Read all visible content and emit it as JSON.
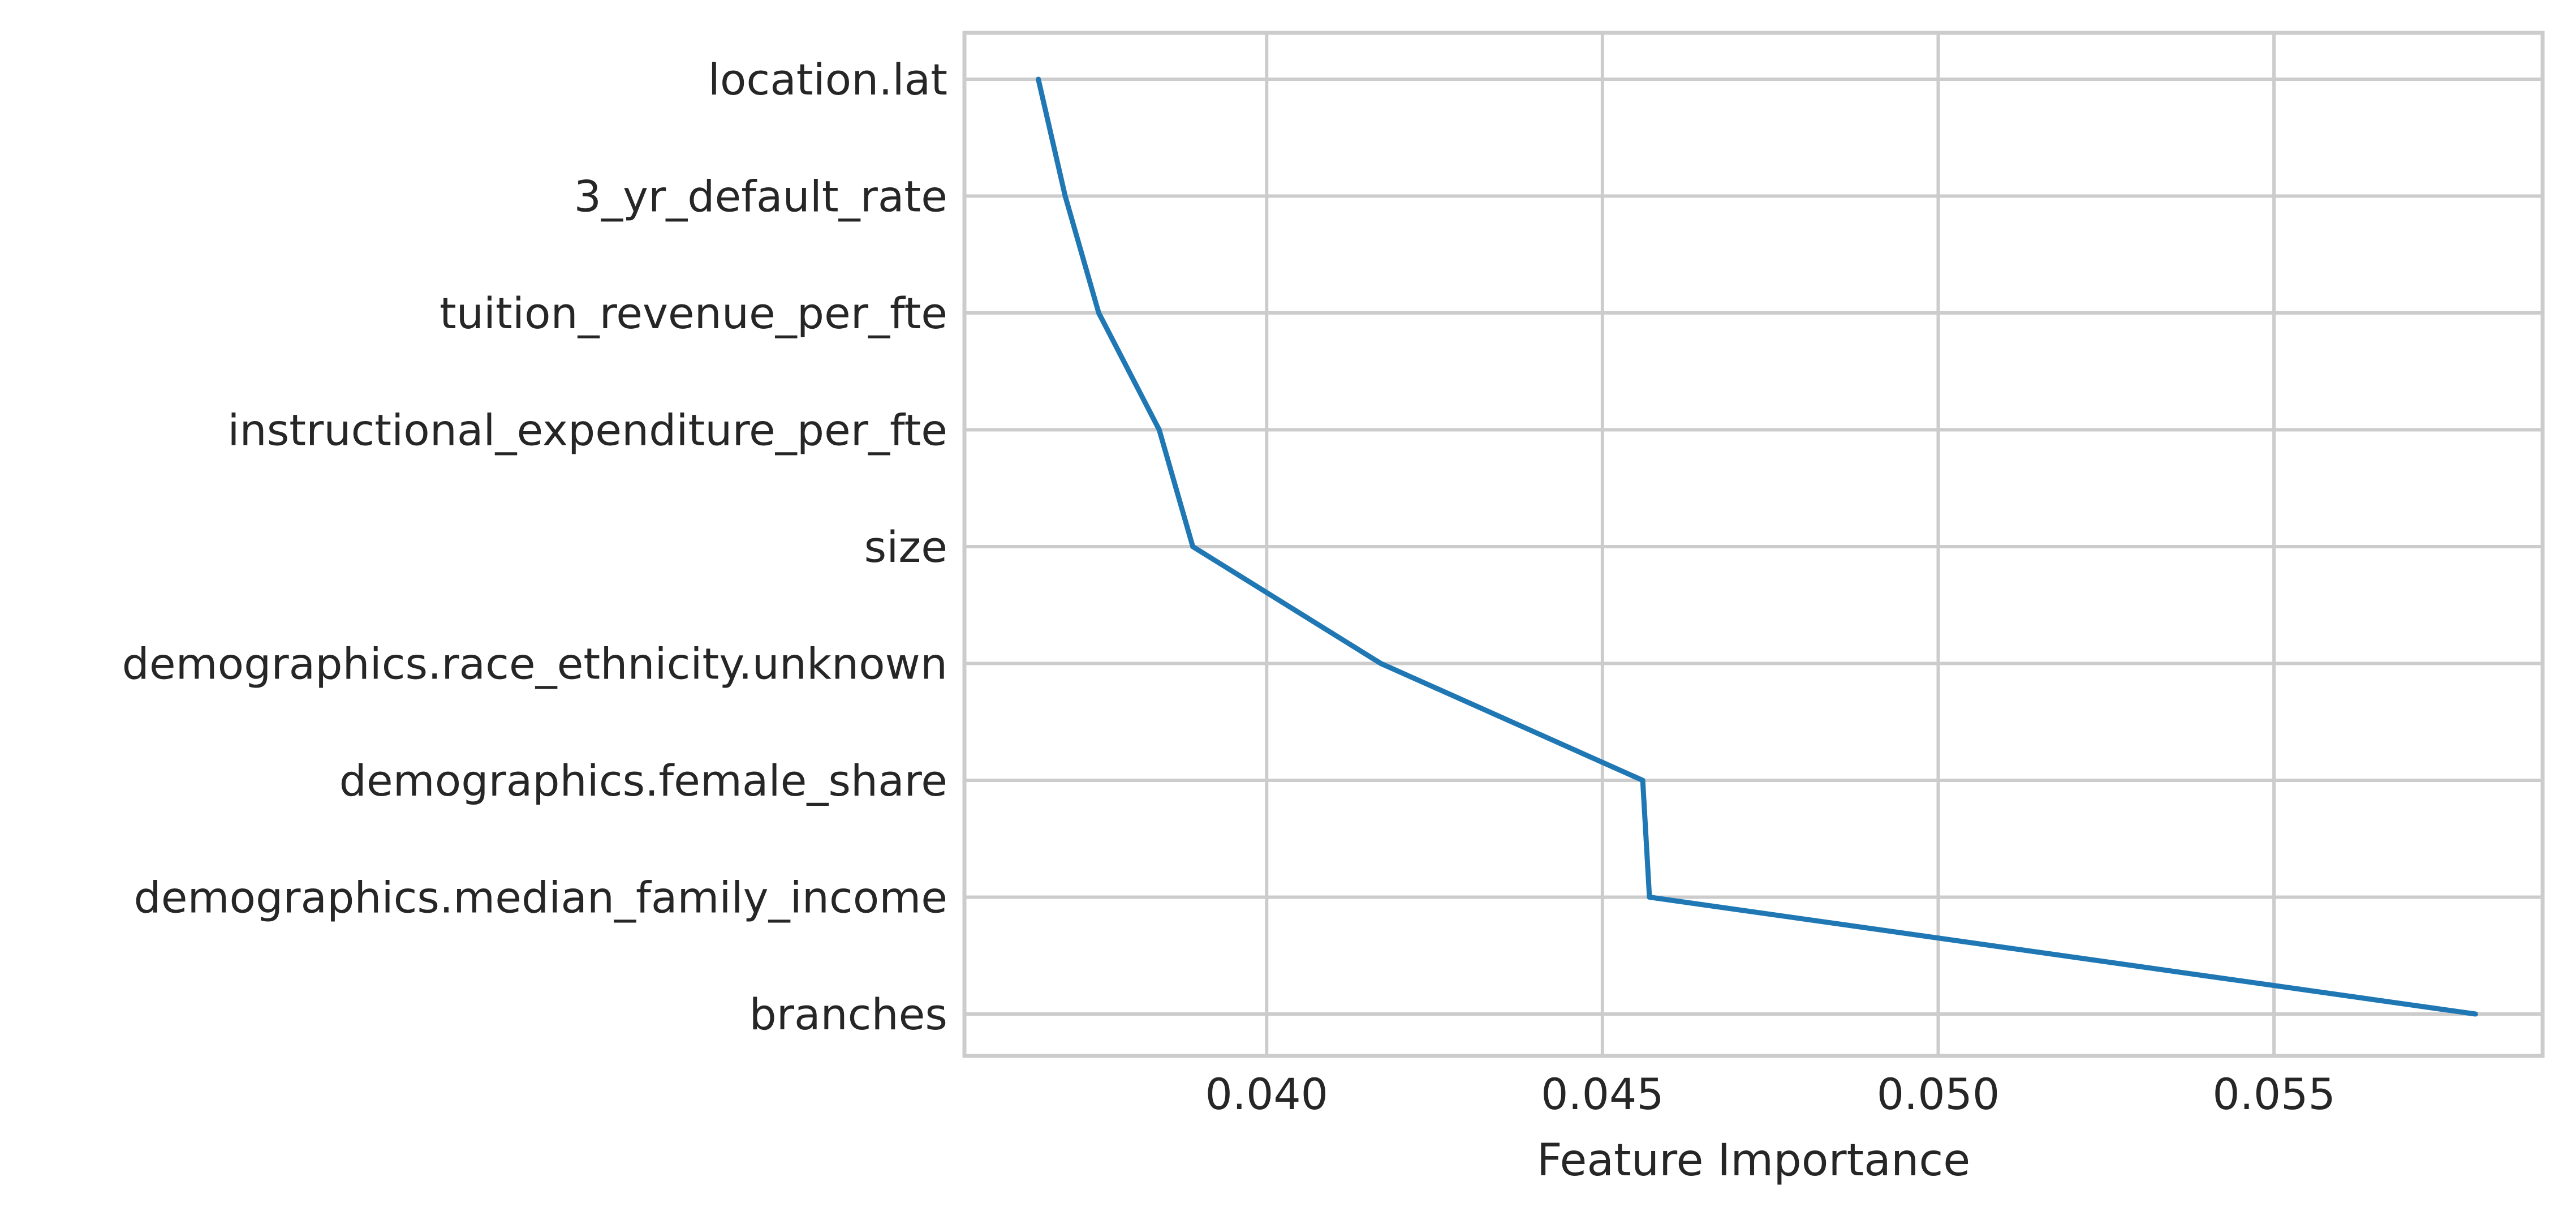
{
  "chart_data": {
    "type": "line",
    "title": "",
    "xlabel": "Feature Importance",
    "ylabel": "",
    "categories": [
      "location.lat",
      "3_yr_default_rate",
      "tuition_revenue_per_fte",
      "instructional_expenditure_per_fte",
      "size",
      "demographics.race_ethnicity.unknown",
      "demographics.female_share",
      "demographics.median_family_income",
      "branches"
    ],
    "x_ticks": [
      "0.040",
      "0.045",
      "0.050",
      "0.055"
    ],
    "x_tick_values": [
      0.04,
      0.045,
      0.05,
      0.055
    ],
    "xlim": [
      0.0355,
      0.059
    ],
    "grid": true,
    "series": [
      {
        "values": [
          0.0366,
          0.037,
          0.0375,
          0.0384,
          0.0389,
          0.0417,
          0.0456,
          0.0457,
          0.058
        ]
      }
    ],
    "colors": {
      "line": "#1f77b4",
      "grid": "#cccccc",
      "text": "#262626"
    }
  }
}
